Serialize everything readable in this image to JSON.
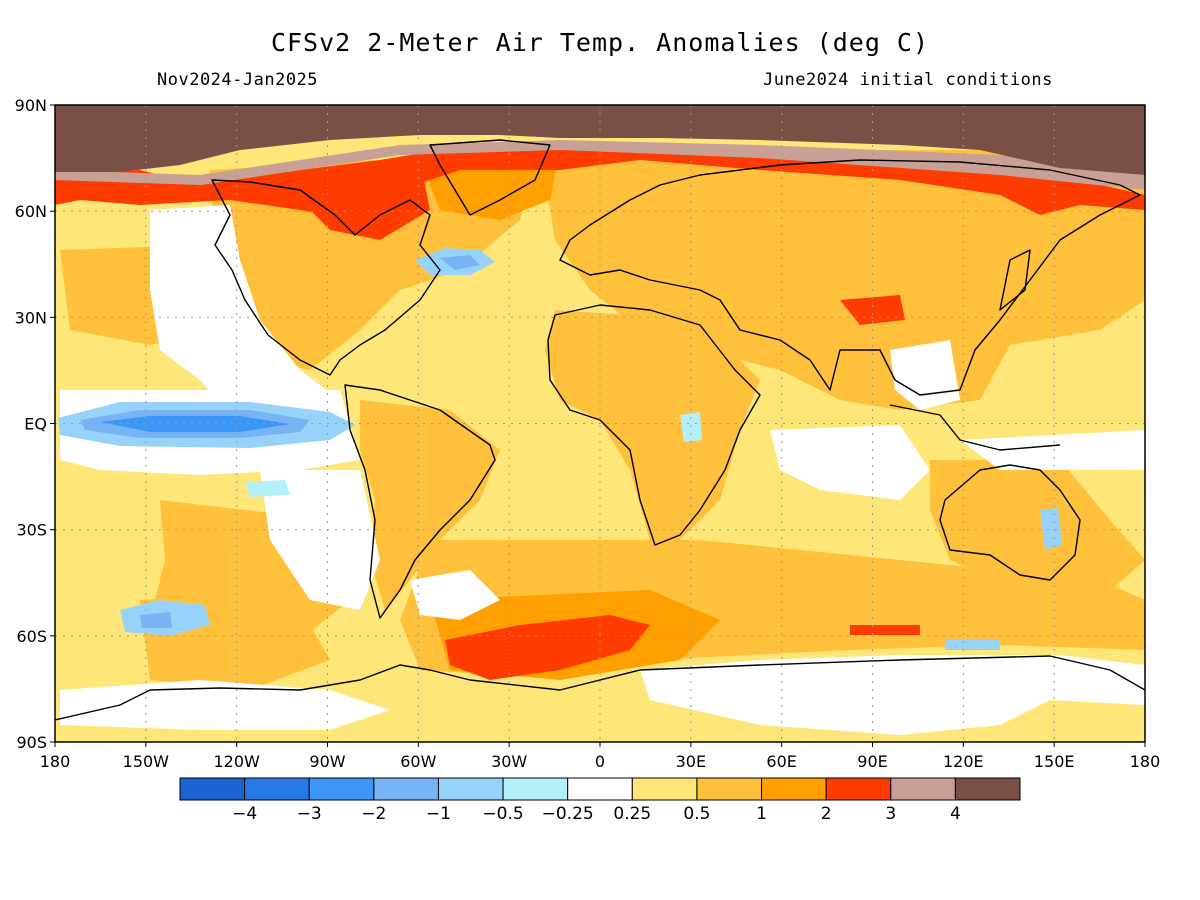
{
  "header": {
    "title": "CFSv2 2-Meter Air Temp. Anomalies (deg C)",
    "period": "Nov2024-Jan2025",
    "init": "June2024 initial conditions"
  },
  "axes": {
    "lat_labels": [
      {
        "lat": 90,
        "text": "90N"
      },
      {
        "lat": 60,
        "text": "60N"
      },
      {
        "lat": 30,
        "text": "30N"
      },
      {
        "lat": 0,
        "text": "EQ"
      },
      {
        "lat": -30,
        "text": "30S"
      },
      {
        "lat": -60,
        "text": "60S"
      },
      {
        "lat": -90,
        "text": "90S"
      }
    ],
    "lon_labels": [
      {
        "lon": -180,
        "text": "180"
      },
      {
        "lon": -150,
        "text": "150W"
      },
      {
        "lon": -120,
        "text": "120W"
      },
      {
        "lon": -90,
        "text": "90W"
      },
      {
        "lon": -60,
        "text": "60W"
      },
      {
        "lon": -30,
        "text": "30W"
      },
      {
        "lon": 0,
        "text": "0"
      },
      {
        "lon": 30,
        "text": "30E"
      },
      {
        "lon": 60,
        "text": "60E"
      },
      {
        "lon": 90,
        "text": "90E"
      },
      {
        "lon": 120,
        "text": "120E"
      },
      {
        "lon": 150,
        "text": "150E"
      },
      {
        "lon": 180,
        "text": "180"
      }
    ]
  },
  "colorbar": {
    "colors": [
      "#1964d2",
      "#2878e6",
      "#3c96f5",
      "#78b4f5",
      "#96d2fa",
      "#b4f0fa",
      "#ffffff",
      "#ffe678",
      "#ffc03c",
      "#ffa000",
      "#ff3c00",
      "#c8a096",
      "#7a5046"
    ],
    "labels": [
      "−4",
      "−3",
      "−2",
      "−1",
      "−0.5",
      "−0.25",
      "0.25",
      "0.5",
      "1",
      "2",
      "3",
      "4"
    ]
  }
}
